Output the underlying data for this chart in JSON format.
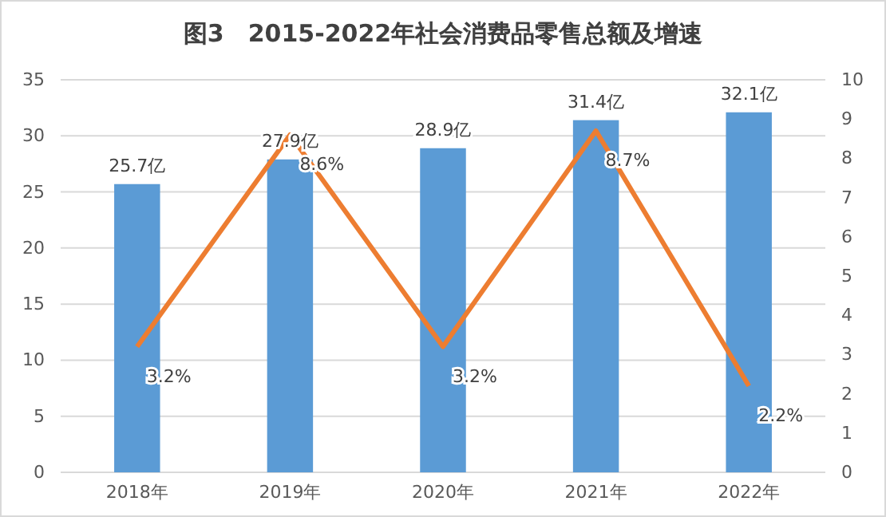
{
  "chart_data": {
    "type": "bar",
    "title": "图3　2015-2022年社会消费品零售总额及增速",
    "categories": [
      "2018年",
      "2019年",
      "2020年",
      "2021年",
      "2022年"
    ],
    "series": [
      {
        "color": "#5b9bd5",
        "values": [
          25.7,
          27.9,
          28.9,
          31.4,
          32.1
        ],
        "value_labels": [
          "25.7亿",
          "27.9亿",
          "28.9亿",
          "31.4亿",
          "32.1亿"
        ]
      },
      {
        "type": "line",
        "axis": "y2",
        "color": "#ed7d31",
        "values": [
          3.2,
          8.6,
          3.2,
          8.7,
          2.2
        ],
        "value_labels": [
          "3.2%",
          "8.6%",
          "3.2%",
          "8.7%",
          "2.2%"
        ]
      }
    ],
    "ylim": [
      0,
      35
    ],
    "yticks": [
      0,
      5,
      10,
      15,
      20,
      25,
      30,
      35
    ],
    "y2lim": [
      0,
      10
    ],
    "y2ticks": [
      0,
      1,
      2,
      3,
      4,
      5,
      6,
      7,
      8,
      9,
      10
    ],
    "grid": "y",
    "marker": "none",
    "line_style": "solid"
  }
}
